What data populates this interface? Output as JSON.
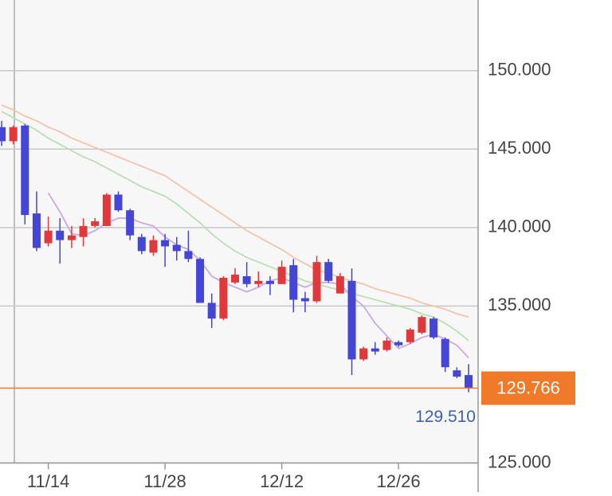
{
  "chart_data": {
    "type": "candlestick",
    "categories": [
      null,
      null,
      null,
      null,
      "11/14",
      null,
      null,
      null,
      null,
      null,
      null,
      null,
      null,
      null,
      "11/28",
      null,
      null,
      null,
      null,
      null,
      null,
      null,
      null,
      null,
      "12/12",
      null,
      null,
      null,
      null,
      null,
      null,
      null,
      null,
      null,
      "12/26",
      null,
      null,
      null,
      null,
      null,
      null
    ],
    "open": [
      146.4,
      145.5,
      146.5,
      140.9,
      139.0,
      139.8,
      139.2,
      139.4,
      140.1,
      140.1,
      142.1,
      141.1,
      139.4,
      138.4,
      139.2,
      138.9,
      138.5,
      138.0,
      135.2,
      134.2,
      136.5,
      136.9,
      136.4,
      136.6,
      136.4,
      137.6,
      135.5,
      135.3,
      137.8,
      135.8,
      136.6,
      131.6,
      132.3,
      132.2,
      132.7,
      132.7,
      133.3,
      134.2,
      132.9,
      130.9,
      130.6
    ],
    "high": [
      146.8,
      146.5,
      146.6,
      142.3,
      140.7,
      140.6,
      140.1,
      140.6,
      140.6,
      142.2,
      142.3,
      141.2,
      139.6,
      139.5,
      139.6,
      139.4,
      139.8,
      138.1,
      135.8,
      136.9,
      137.4,
      137.8,
      137.2,
      136.9,
      137.9,
      138.0,
      135.9,
      138.2,
      138.0,
      137.1,
      137.4,
      132.4,
      132.7,
      133.0,
      132.8,
      133.6,
      134.4,
      134.3,
      133.0,
      131.1,
      131.3
    ],
    "low": [
      145.2,
      145.3,
      140.2,
      138.5,
      138.8,
      137.7,
      138.7,
      138.8,
      140.0,
      140.1,
      141.0,
      139.2,
      138.3,
      138.2,
      137.5,
      137.9,
      137.8,
      135.2,
      133.6,
      134.1,
      136.4,
      136.2,
      136.2,
      135.7,
      136.4,
      134.6,
      134.6,
      135.2,
      136.5,
      135.8,
      130.6,
      131.5,
      131.9,
      132.1,
      132.4,
      132.6,
      133.2,
      132.9,
      130.8,
      130.4,
      129.51
    ],
    "close": [
      145.5,
      146.4,
      140.8,
      138.7,
      139.8,
      139.2,
      139.5,
      140.1,
      140.4,
      142.1,
      141.1,
      139.5,
      138.5,
      139.2,
      138.8,
      138.5,
      138.0,
      135.2,
      134.2,
      136.8,
      137.0,
      136.4,
      136.6,
      136.4,
      137.5,
      135.4,
      135.3,
      137.8,
      136.6,
      136.9,
      131.6,
      132.3,
      132.1,
      132.8,
      132.5,
      133.5,
      134.3,
      133.0,
      131.1,
      130.5,
      129.766
    ],
    "up_color": "#e0393c",
    "down_color": "#4545d6",
    "moving_averages": [
      {
        "color": "#c9a8f0",
        "values": [
          null,
          null,
          null,
          null,
          142.2,
          141.0,
          139.6,
          139.5,
          139.8,
          140.3,
          140.6,
          140.6,
          140.3,
          140.1,
          139.4,
          138.9,
          138.6,
          137.9,
          136.9,
          136.5,
          136.2,
          135.9,
          136.2,
          136.6,
          136.8,
          136.5,
          136.2,
          136.5,
          136.5,
          136.4,
          135.6,
          135.0,
          133.9,
          133.1,
          132.3,
          132.6,
          133.0,
          133.2,
          132.9,
          132.5,
          131.7
        ]
      },
      {
        "color": "#b8e0b4",
        "values": [
          147.4,
          147.0,
          146.6,
          146.2,
          145.7,
          145.3,
          144.9,
          144.5,
          144.2,
          143.8,
          143.4,
          143.0,
          142.6,
          142.3,
          142.0,
          141.5,
          140.9,
          140.3,
          139.6,
          139.0,
          138.5,
          138.1,
          137.8,
          137.5,
          137.2,
          136.9,
          136.6,
          136.4,
          136.2,
          136.0,
          135.8,
          135.6,
          135.4,
          135.2,
          135.0,
          134.8,
          134.5,
          134.3,
          133.9,
          133.4,
          132.8
        ]
      },
      {
        "color": "#f6c3aa",
        "values": [
          147.8,
          147.5,
          147.1,
          146.8,
          146.4,
          146.1,
          145.7,
          145.4,
          145.1,
          144.8,
          144.5,
          144.2,
          143.9,
          143.6,
          143.3,
          142.8,
          142.3,
          141.8,
          141.3,
          140.8,
          140.3,
          139.8,
          139.4,
          139.0,
          138.6,
          138.1,
          137.7,
          137.3,
          137.1,
          136.8,
          136.6,
          136.4,
          136.1,
          135.9,
          135.7,
          135.5,
          135.2,
          135.0,
          134.8,
          134.5,
          134.3
        ]
      }
    ],
    "ylim": [
      125,
      154.5
    ],
    "yticks": [
      {
        "value": 125,
        "label": "125.000"
      },
      {
        "value": 135,
        "label": "135.000"
      },
      {
        "value": 140,
        "label": "140.000"
      },
      {
        "value": 145,
        "label": "145.000"
      },
      {
        "value": 150,
        "label": "150.000"
      }
    ],
    "grid": true,
    "current_price": {
      "value": 129.766,
      "label": "129.766",
      "color": "#f07a2a"
    },
    "low_marker": {
      "value": 129.51,
      "label": "129.510",
      "color": "#3d5fb4"
    }
  }
}
